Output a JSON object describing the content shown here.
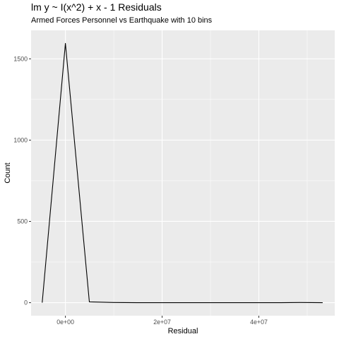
{
  "chart_data": {
    "type": "line",
    "title": "lm y ~ I(x^2) + x - 1 Residuals",
    "subtitle": "Armed Forces Personnel vs Earthquake with 10 bins",
    "xlabel": "Residual",
    "ylabel": "Count",
    "xlim": [
      -7100000,
      55700000
    ],
    "ylim": [
      -80,
      1675
    ],
    "x_ticks": [
      {
        "value": 0,
        "label": "0e+00"
      },
      {
        "value": 20000000,
        "label": "2e+07"
      },
      {
        "value": 40000000,
        "label": "4e+07"
      }
    ],
    "y_ticks": [
      {
        "value": 0,
        "label": "0"
      },
      {
        "value": 500,
        "label": "500"
      },
      {
        "value": 1000,
        "label": "1000"
      },
      {
        "value": 1500,
        "label": "1500"
      }
    ],
    "grid": true,
    "legend": "none",
    "colors": {
      "panel": "#ebebeb",
      "grid": "#ffffff",
      "line": "#000000"
    },
    "series": [
      {
        "x": [
          -4800000,
          0,
          4950000,
          9900000,
          14850000,
          19800000,
          24750000,
          29700000,
          34650000,
          39600000,
          44550000,
          48500000,
          53200000
        ],
        "values": [
          0,
          1595,
          5,
          1,
          0,
          0,
          0,
          0,
          0,
          0,
          0,
          1,
          0
        ]
      }
    ]
  }
}
